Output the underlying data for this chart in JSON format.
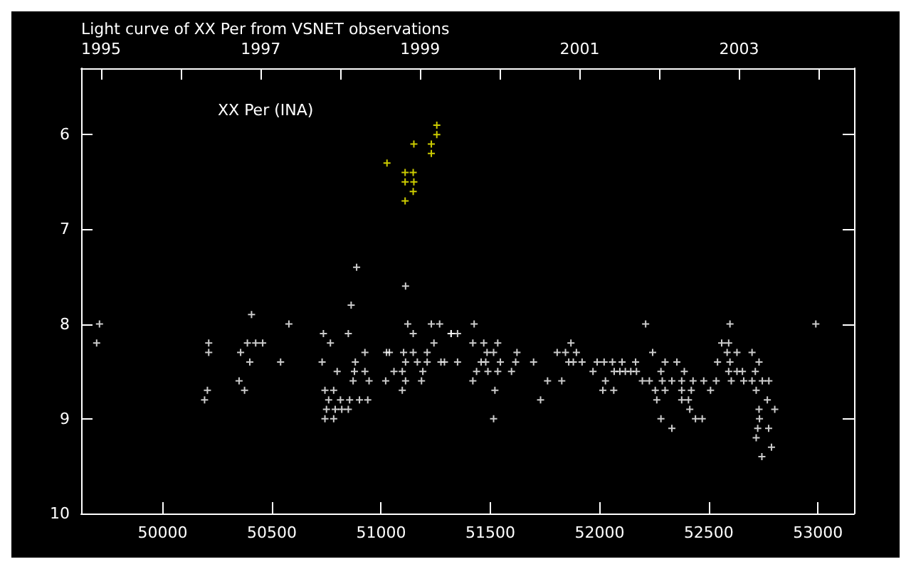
{
  "chart_data": {
    "type": "scatter",
    "title": "Light curve of XX Per from VSNET observations",
    "annotations": [
      "XX Per (INA)"
    ],
    "xlim": [
      49627,
      53165
    ],
    "xticks": [
      50000,
      50500,
      51000,
      51500,
      52000,
      52500,
      53000
    ],
    "x2lim": [
      1994.75,
      2004.44
    ],
    "x2ticks": [
      1995,
      {
        "value": 1996,
        "label": null
      },
      1997,
      {
        "value": 1998,
        "label": null
      },
      1999,
      {
        "value": 2000,
        "label": null
      },
      2001,
      {
        "value": 2002,
        "label": null
      },
      2003,
      {
        "value": 2004,
        "label": null
      }
    ],
    "ylim": [
      10,
      5.3
    ],
    "yticks": [
      6,
      7,
      8,
      9,
      10
    ],
    "grid": false,
    "marker": "cross",
    "series": [
      {
        "color": "#ffffff",
        "x": [
          49711,
          49698,
          50211,
          50211,
          50192,
          50205,
          50407,
          50388,
          50426,
          50458,
          50357,
          50399,
          50350,
          50375,
          50578,
          50540,
          50736,
          50768,
          50730,
          50799,
          50743,
          50783,
          50760,
          50814,
          50856,
          50750,
          50790,
          50820,
          50743,
          50783,
          50850,
          50901,
          50939,
          50863,
          50850,
          50888,
          50882,
          50878,
          50872,
          50926,
          50926,
          50945,
          51021,
          51025,
          51038,
          51059,
          51097,
          51097,
          51103,
          51112,
          51122,
          51112,
          51112,
          51147,
          51147,
          51166,
          51185,
          51191,
          51211,
          51211,
          51242,
          51230,
          51268,
          51274,
          51321,
          51290,
          51350,
          51320,
          51350,
          51426,
          51420,
          51470,
          51534,
          51485,
          51515,
          51622,
          51458,
          51479,
          51546,
          51616,
          51698,
          51437,
          51489,
          51534,
          51597,
          51420,
          51521,
          51515,
          51730,
          51762,
          51827,
          51806,
          51844,
          51894,
          51869,
          51859,
          51880,
          51920,
          51970,
          51989,
          52021,
          52059,
          52103,
          52165,
          52067,
          52093,
          52118,
          52143,
          52169,
          52027,
          52015,
          52065,
          52211,
          52243,
          52196,
          52228,
          52281,
          52255,
          52300,
          52262,
          52281,
          52331,
          52300,
          52354,
          52287,
          52331,
          52388,
          52376,
          52428,
          52376,
          52420,
          52376,
          52407,
          52413,
          52439,
          52470,
          52477,
          52534,
          52508,
          52540,
          52597,
          52559,
          52591,
          52597,
          52584,
          52629,
          52591,
          52629,
          52654,
          52603,
          52660,
          52698,
          52698,
          52713,
          52730,
          52717,
          52745,
          52775,
          52768,
          52730,
          52802,
          52732,
          52724,
          52774,
          52717,
          52787,
          52743,
          52990
        ],
        "values": [
          8.0,
          8.2,
          8.2,
          8.3,
          8.8,
          8.7,
          7.9,
          8.2,
          8.2,
          8.2,
          8.3,
          8.4,
          8.6,
          8.7,
          8.0,
          8.4,
          8.1,
          8.2,
          8.4,
          8.5,
          8.7,
          8.7,
          8.8,
          8.8,
          8.8,
          8.9,
          8.9,
          8.9,
          9.0,
          9.0,
          8.9,
          8.8,
          8.8,
          7.8,
          8.1,
          7.4,
          8.4,
          8.5,
          8.6,
          8.3,
          8.5,
          8.6,
          8.6,
          8.3,
          8.3,
          8.5,
          8.7,
          8.5,
          8.3,
          7.6,
          8.0,
          8.4,
          8.6,
          8.1,
          8.3,
          8.4,
          8.6,
          8.5,
          8.3,
          8.4,
          8.2,
          8.0,
          8.0,
          8.4,
          8.1,
          8.4,
          8.4,
          8.1,
          8.1,
          8.0,
          8.2,
          8.2,
          8.2,
          8.3,
          8.3,
          8.3,
          8.4,
          8.4,
          8.4,
          8.4,
          8.4,
          8.5,
          8.5,
          8.5,
          8.5,
          8.6,
          8.7,
          9.0,
          8.8,
          8.6,
          8.6,
          8.3,
          8.3,
          8.3,
          8.2,
          8.4,
          8.4,
          8.4,
          8.5,
          8.4,
          8.4,
          8.4,
          8.4,
          8.4,
          8.5,
          8.5,
          8.5,
          8.5,
          8.5,
          8.6,
          8.7,
          8.7,
          8.0,
          8.3,
          8.6,
          8.6,
          8.5,
          8.7,
          8.7,
          8.8,
          9.0,
          9.1,
          8.4,
          8.4,
          8.6,
          8.6,
          8.5,
          8.6,
          8.6,
          8.7,
          8.7,
          8.8,
          8.8,
          8.9,
          9.0,
          9.0,
          8.6,
          8.6,
          8.7,
          8.4,
          8.4,
          8.2,
          8.2,
          8.0,
          8.3,
          8.3,
          8.5,
          8.5,
          8.5,
          8.6,
          8.6,
          8.3,
          8.6,
          8.5,
          8.4,
          8.7,
          8.6,
          8.6,
          8.8,
          8.9,
          8.9,
          9.0,
          9.1,
          9.1,
          9.2,
          9.3,
          9.4,
          8.0
        ]
      },
      {
        "color": "#ffff00",
        "x": [
          51255,
          51255,
          51150,
          51230,
          51230,
          51027,
          51110,
          51147,
          51110,
          51150,
          51147,
          51110
        ],
        "values": [
          5.9,
          6.0,
          6.1,
          6.1,
          6.2,
          6.3,
          6.4,
          6.4,
          6.5,
          6.5,
          6.6,
          6.7
        ]
      }
    ]
  }
}
